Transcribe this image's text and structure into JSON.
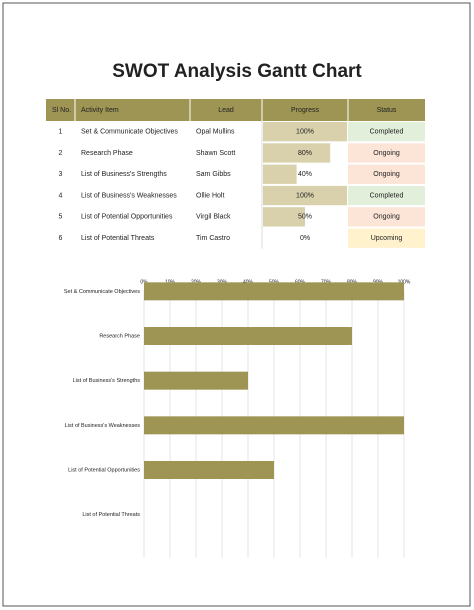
{
  "title": "SWOT Analysis Gantt Chart",
  "table": {
    "headers": [
      "Sl No.",
      "Activity Item",
      "Lead",
      "Progress",
      "Status"
    ],
    "header_color": "#9e9555",
    "progress_color": "#d8d1ab",
    "rows": [
      [
        "1",
        "Set & Communicate Objectives",
        "Opal Mullins",
        "100%",
        "Completed"
      ],
      [
        "2",
        "Research Phase",
        "Shawn Scott",
        "80%",
        "Ongoing"
      ],
      [
        "3",
        "List of Business's Strengths",
        "Sam Gibbs",
        "40%",
        "Ongoing"
      ],
      [
        "4",
        "List of Business's Weaknesses",
        "Ollie Holt",
        "100%",
        "Completed"
      ],
      [
        "5",
        "List of Potential Opportunities",
        "Virgil Black",
        "50%",
        "Ongoing"
      ],
      [
        "6",
        "List of Potential Threats",
        "Tim Castro",
        "0%",
        "Upcoming"
      ]
    ],
    "status_colors": [
      "#e2efda",
      "#fce4d6",
      "#fce4d6",
      "#e2efda",
      "#fce4d6",
      "#fff2cc"
    ]
  },
  "chart_data": {
    "type": "bar",
    "orientation": "horizontal",
    "color": "#9e9555",
    "grid": true,
    "categories": [
      "Set & Communicate Objectives",
      "Research Phase",
      "List of Business's Strengths",
      "List of Business's Weaknesses",
      "List of Potential Opportunities",
      "List of Potential Threats"
    ],
    "values": [
      100,
      80,
      40,
      100,
      50,
      0
    ],
    "xlim": [
      0,
      100
    ],
    "xticks": [
      {
        "value": 0,
        "label": "0%"
      },
      {
        "value": 10,
        "label": "10%"
      },
      {
        "value": 20,
        "label": "20%"
      },
      {
        "value": 30,
        "label": "30%"
      },
      {
        "value": 40,
        "label": "40%"
      },
      {
        "value": 50,
        "label": "50%"
      },
      {
        "value": 60,
        "label": "60%"
      },
      {
        "value": 70,
        "label": "70%"
      },
      {
        "value": 80,
        "label": "80%"
      },
      {
        "value": 90,
        "label": "90%"
      },
      {
        "value": 100,
        "label": "100%"
      }
    ]
  }
}
